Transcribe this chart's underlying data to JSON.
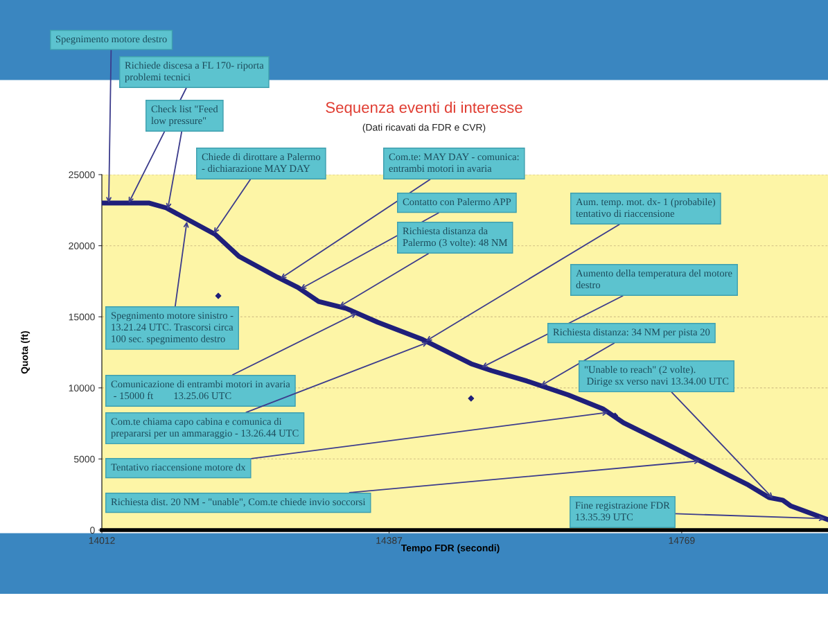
{
  "chart_data": {
    "type": "line",
    "title": "Sequenza eventi di interesse",
    "subtitle": "(Dati ricavati da FDR e CVR)",
    "xlabel": "Tempo FDR (secondi)",
    "ylabel": "Quota (ft)",
    "xlim": [
      14012,
      14960
    ],
    "xticks": [
      14012,
      14387,
      14769
    ],
    "ylim": [
      0,
      25000
    ],
    "yticks": [
      0,
      5000,
      10000,
      15000,
      20000,
      25000
    ],
    "grid": "y",
    "series": [
      {
        "color": "#1f1f7a",
        "x": [
          14012,
          14074,
          14096,
          14160,
          14191,
          14241,
          14268,
          14295,
          14331,
          14372,
          14431,
          14494,
          14521,
          14567,
          14621,
          14666,
          14693,
          14748,
          14793,
          14856,
          14883,
          14901,
          14911,
          14960
        ],
        "values": [
          23000,
          23000,
          22660,
          20800,
          19250,
          17790,
          17060,
          16080,
          15590,
          14620,
          13400,
          11700,
          11210,
          10480,
          9500,
          8530,
          7550,
          6090,
          4870,
          3170,
          2290,
          2100,
          1710,
          730
        ]
      },
      {
        "type": "scatter",
        "color": "#1f1f7a",
        "x": [
          14164,
          14494,
          14682
        ],
        "values": [
          16470,
          9260,
          8040
        ]
      }
    ],
    "annotations": [
      {
        "text": "Spegnimento motore destro",
        "x": 14021,
        "y": 23000
      },
      {
        "text": "Richiede discesa a FL 170- riporta\nproblemi tecnici",
        "x": 14047,
        "y": 23000
      },
      {
        "text": "Check list \"Feed\nlow pressure\"",
        "x": 14098,
        "y": 22570
      },
      {
        "text": "Chiede di dirottare a Palermo\n- dichiarazione MAY DAY",
        "x": 14158,
        "y": 20860
      },
      {
        "text": "Com.te: MAY DAY - comunica:\nentrambi motori in avaria",
        "x": 14245,
        "y": 17680
      },
      {
        "text": "Contatto con Palermo APP",
        "x": 14271,
        "y": 16950
      },
      {
        "text": "Richiesta distanza da\nPalermo (3 volte): 48 NM",
        "x": 14322,
        "y": 15710
      },
      {
        "text": "Aum. temp. mot. dx- 1 (probabile)\ntentativo di riaccensione",
        "x": 14435,
        "y": 13290
      },
      {
        "text": "Aumento della temperatura del motore\ndestro",
        "x": 14508,
        "y": 11440
      },
      {
        "text": "Richiesta distanza: 34 NM per pista 20",
        "x": 14585,
        "y": 10150
      },
      {
        "text": "\"Unable to reach\" (2 volte).\n Dirige sx verso navi 13.34.00 UTC",
        "x": 14888,
        "y": 2240
      },
      {
        "text": "Spegnimento motore sinistro -\n13.21.24 UTC. Trascorsi circa\n100 sec. spegnimento destro",
        "x": 14123,
        "y": 21700
      },
      {
        "text": "Comunicazione di entrambi motori in avaria\n - 15000 ft        13.25.06 UTC",
        "x": 14345,
        "y": 15260
      },
      {
        "text": "Com.te chiama capo cabina e comunica di\nprepararsi per un ammaraggio - 13.26.44 UTC",
        "x": 14438,
        "y": 13210
      },
      {
        "text": "Tentativo riaccensione motore dx",
        "x": 14673,
        "y": 8280
      },
      {
        "text": "Richiesta dist. 20 NM - \"unable\", Com.te chiede invio soccorsi",
        "x": 14793,
        "y": 4870
      },
      {
        "text": "Fine registrazione FDR\n13.35.39 UTC",
        "x": 14956,
        "y": 810
      }
    ]
  }
}
